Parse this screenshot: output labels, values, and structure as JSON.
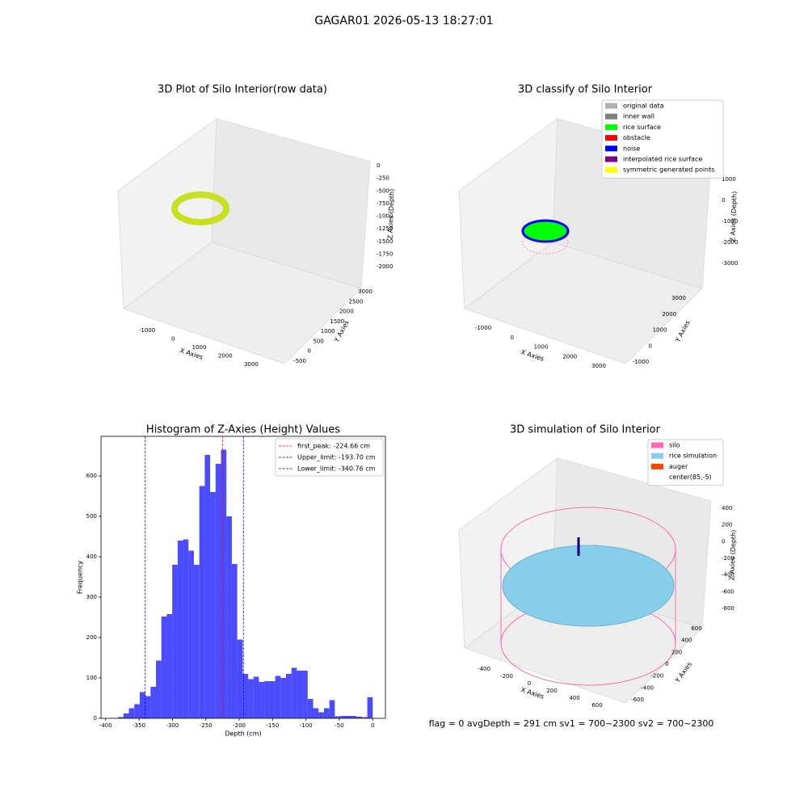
{
  "title": "GAGAR01 2026-05-13 18:27:01",
  "status": "flag = 0     avgDepth = 291 cm  sv1 = 700~2300  sv2 = 700~2300",
  "chart_data": [
    {
      "type": "scatter3d",
      "title": "3D Plot of Silo Interior(row data)",
      "xlabel": "X Axies",
      "ylabel": "Y Axies",
      "zlabel": "Z Axies (Depth)",
      "xticks": [
        -1000,
        0,
        1000,
        2000,
        3000
      ],
      "yticks": [
        -500,
        0,
        500,
        1000,
        1500,
        2000,
        2500,
        3000
      ],
      "zticks": [
        0,
        -250,
        -500,
        -750,
        -1000,
        -1250,
        -1500,
        -1750,
        -2000
      ]
    },
    {
      "type": "scatter3d",
      "title": "3D classify of Silo Interior",
      "xlabel": "X Axies",
      "ylabel": "Y Axies",
      "zlabel": "Z Axies (Depth)",
      "xticks": [
        -1000,
        0,
        1000,
        2000,
        3000
      ],
      "yticks": [
        -1000,
        0,
        1000,
        2000,
        3000
      ],
      "zticks": [
        1000,
        0,
        -1000,
        -2000,
        -3000
      ],
      "series": [
        {
          "name": "original data",
          "color": "#b0b0b0"
        },
        {
          "name": "inner wall",
          "color": "#808080"
        },
        {
          "name": "rice surface",
          "color": "#00ff00"
        },
        {
          "name": "obstacle",
          "color": "#ff0000"
        },
        {
          "name": "noise",
          "color": "#0000ff"
        },
        {
          "name": "interpolated rice surface",
          "color": "#800080"
        },
        {
          "name": "symmetric generated points",
          "color": "#ffff00"
        }
      ]
    },
    {
      "type": "histogram",
      "title": "Histogram of Z-Axies (Height) Values",
      "xlabel": "Depth (cm)",
      "ylabel": "Frequency",
      "color": "#0000ff",
      "bins": [
        -389.6,
        -381.48,
        -373.37,
        -365.25,
        -357.13,
        -349.02,
        -340.9,
        -332.78,
        -324.67,
        -316.55,
        -308.43,
        -300.32,
        -292.2,
        -284.08,
        -275.97,
        -267.85,
        -259.73,
        -251.62,
        -243.5,
        -235.38,
        -227.27,
        -219.15,
        -211.03,
        -202.92,
        -194.8,
        -186.68,
        -178.57,
        -170.45,
        -162.33,
        -154.22,
        -146.1,
        -137.98,
        -129.87,
        -121.75,
        -113.63,
        -105.52,
        -97.4,
        -89.28,
        -81.17,
        -73.05,
        -64.93,
        -56.82,
        -48.7,
        -40.58,
        -32.47,
        -24.35,
        -16.23,
        -8.12,
        0
      ],
      "counts": [
        1,
        3,
        12,
        25,
        35,
        65,
        55,
        78,
        143,
        252,
        258,
        380,
        440,
        443,
        415,
        380,
        575,
        652,
        560,
        630,
        665,
        500,
        382,
        195,
        110,
        97,
        103,
        90,
        92,
        92,
        105,
        100,
        110,
        125,
        118,
        118,
        48,
        25,
        15,
        25,
        45,
        5,
        6,
        6,
        6,
        4,
        3,
        52
      ],
      "xlim": [
        -407,
        19
      ],
      "ylim": [
        0,
        698
      ],
      "xticks": [
        -400,
        -350,
        -300,
        -250,
        -200,
        -150,
        -100,
        -50,
        0
      ],
      "yticks": [
        0,
        100,
        200,
        300,
        400,
        500,
        600
      ],
      "lines": [
        {
          "name": "first_peak: -224.66 cm",
          "value": -224.66,
          "color": "#ff0000"
        },
        {
          "name": "Upper_limit: -193.70 cm",
          "value": -193.7,
          "color": "#0000ff"
        },
        {
          "name": "Lower_limit: -340.76 cm",
          "value": -340.76,
          "color": "#0000ff"
        }
      ],
      "legend": "upper right"
    },
    {
      "type": "scatter3d",
      "title": "3D simulation of Silo Interior",
      "xlabel": "X Axies",
      "ylabel": "Y Axies",
      "zlabel": "Z Axies (Depth)",
      "xticks": [
        -400,
        -200,
        0,
        200,
        400,
        600
      ],
      "yticks": [
        -600,
        -400,
        -200,
        0,
        200,
        400,
        600
      ],
      "zticks": [
        400,
        200,
        0,
        -200,
        -400,
        -600,
        -800
      ],
      "series": [
        {
          "name": "silo",
          "color": "#ff69b4"
        },
        {
          "name": "rice simulation",
          "color": "#87ceeb"
        },
        {
          "name": "auger",
          "color": "#ff4500"
        },
        {
          "name": "center(85,-5)",
          "color": "#ffffff"
        }
      ]
    }
  ]
}
